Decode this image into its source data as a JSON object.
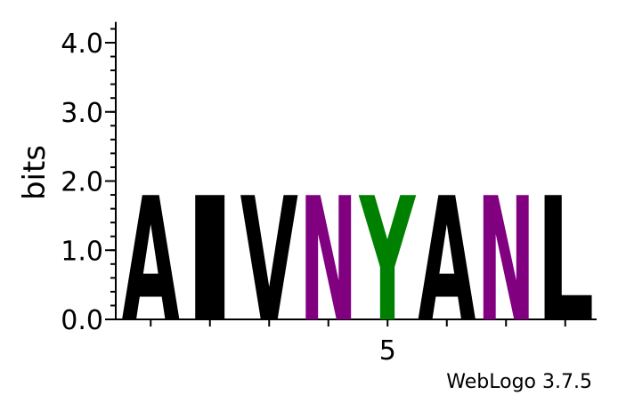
{
  "chart_data": {
    "type": "sequence-logo",
    "ylabel": "bits",
    "ylim": [
      0,
      4.3
    ],
    "yticks": [
      "0.0",
      "1.0",
      "2.0",
      "3.0",
      "4.0"
    ],
    "ytick_values": [
      0,
      1,
      2,
      3,
      4
    ],
    "xticks": [
      {
        "label": "5",
        "position": 5
      }
    ],
    "positions": [
      {
        "position": 1,
        "letter": "A",
        "bits": 1.8,
        "color": "#000000"
      },
      {
        "position": 2,
        "letter": "I",
        "bits": 1.8,
        "color": "#000000"
      },
      {
        "position": 3,
        "letter": "V",
        "bits": 1.8,
        "color": "#000000"
      },
      {
        "position": 4,
        "letter": "N",
        "bits": 1.8,
        "color": "#800080"
      },
      {
        "position": 5,
        "letter": "Y",
        "bits": 1.8,
        "color": "#008000"
      },
      {
        "position": 6,
        "letter": "A",
        "bits": 1.8,
        "color": "#000000"
      },
      {
        "position": 7,
        "letter": "N",
        "bits": 1.8,
        "color": "#800080"
      },
      {
        "position": 8,
        "letter": "L",
        "bits": 1.8,
        "color": "#000000"
      }
    ],
    "credit": "WebLogo 3.7.5"
  }
}
